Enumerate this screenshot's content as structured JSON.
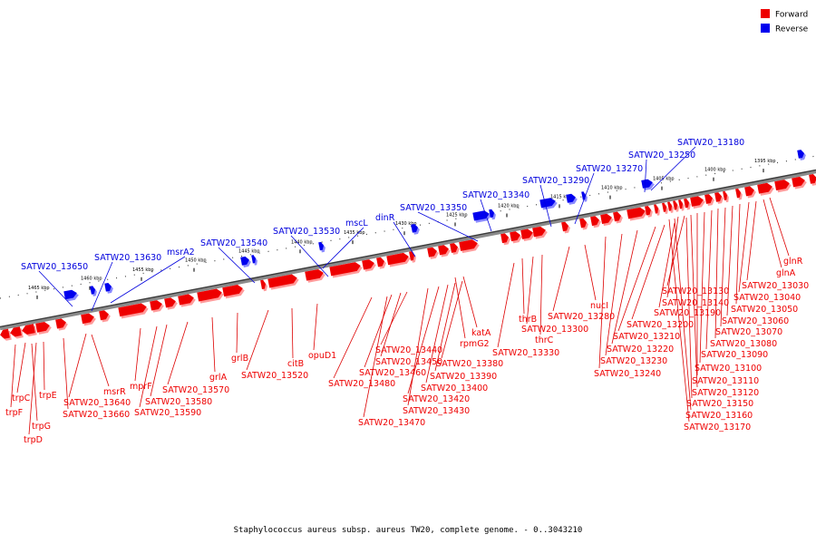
{
  "legend": [
    {
      "label": "Forward",
      "color": "#ee0000"
    },
    {
      "label": "Reverse",
      "color": "#0000ee"
    }
  ],
  "footer": "Staphylococcus aureus subsp. aureus TW20, complete genome. - 0..3043210",
  "ticks": [
    "1395 kbp",
    "1400 kbp",
    "1405 kbp",
    "1410 kbp",
    "1415 kbp",
    "1420 kbp",
    "1425 kbp",
    "1430 kbp",
    "1435 kbp",
    "1440 kbp",
    "1445 kbp",
    "1450 kbp",
    "1455 kbp",
    "1460 kbp",
    "1465 kbp"
  ],
  "reverse_labels": [
    "SATW20_13180",
    "SATW20_13250",
    "SATW20_13270",
    "SATW20_13290",
    "SATW20_13340",
    "SATW20_13350",
    "dinR",
    "mscL",
    "SATW20_13530",
    "SATW20_13540",
    "msrA2",
    "SATW20_13630",
    "SATW20_13650"
  ],
  "forward_labels": [
    "glnR",
    "glnA",
    "SATW20_13030",
    "SATW20_13040",
    "SATW20_13050",
    "SATW20_13060",
    "SATW20_13070",
    "SATW20_13080",
    "SATW20_13090",
    "SATW20_13100",
    "SATW20_13110",
    "SATW20_13120",
    "SATW20_13130",
    "SATW20_13140",
    "SATW20_13150",
    "SATW20_13160",
    "SATW20_13170",
    "SATW20_13190",
    "SATW20_13200",
    "SATW20_13210",
    "SATW20_13220",
    "SATW20_13230",
    "SATW20_13240",
    "nucI",
    "SATW20_13280",
    "thrB",
    "SATW20_13300",
    "thrC",
    "SATW20_13330",
    "katA",
    "rpmG2",
    "SATW20_13380",
    "SATW20_13390",
    "SATW20_13400",
    "SATW20_13420",
    "SATW20_13430",
    "SATW20_13440",
    "SATW20_13450",
    "SATW20_13460",
    "SATW20_13470",
    "SATW20_13480",
    "opuD1",
    "citB",
    "SATW20_13520",
    "grlB",
    "grlA",
    "SATW20_13570",
    "SATW20_13580",
    "SATW20_13590",
    "mprF",
    "msrR",
    "SATW20_13640",
    "SATW20_13660",
    "trpE",
    "trpC",
    "trpF",
    "trpG",
    "trpD"
  ]
}
